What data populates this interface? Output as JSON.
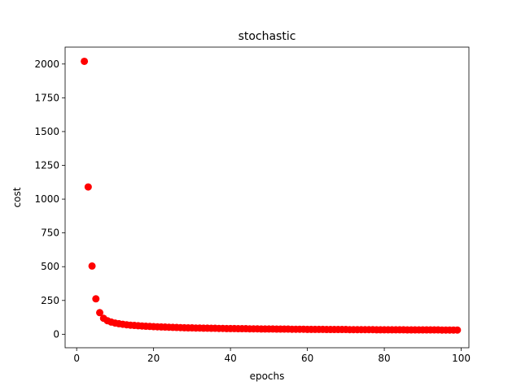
{
  "chart_data": {
    "type": "scatter",
    "title": "stochastic",
    "xlabel": "epochs",
    "ylabel": "cost",
    "xlim": [
      -3,
      102
    ],
    "ylim": [
      -100,
      2125
    ],
    "xticks": [
      0,
      20,
      40,
      60,
      80,
      100
    ],
    "yticks": [
      0,
      250,
      500,
      750,
      1000,
      1250,
      1500,
      1750,
      2000
    ],
    "grid": false,
    "color": "#ff0000",
    "series": [
      {
        "x": [
          2,
          3,
          4,
          5,
          6,
          7,
          8,
          9,
          10,
          11,
          12,
          13,
          14,
          15,
          16,
          17,
          18,
          19,
          20,
          21,
          22,
          23,
          24,
          25,
          26,
          27,
          28,
          29,
          30,
          31,
          32,
          33,
          34,
          35,
          36,
          37,
          38,
          39,
          40,
          41,
          42,
          43,
          44,
          45,
          46,
          47,
          48,
          49,
          50,
          51,
          52,
          53,
          54,
          55,
          56,
          57,
          58,
          59,
          60,
          61,
          62,
          63,
          64,
          65,
          66,
          67,
          68,
          69,
          70,
          71,
          72,
          73,
          74,
          75,
          76,
          77,
          78,
          79,
          80,
          81,
          82,
          83,
          84,
          85,
          86,
          87,
          88,
          89,
          90,
          91,
          92,
          93,
          94,
          95,
          96,
          97,
          98,
          99
        ],
        "y": [
          2020,
          1090,
          505,
          262,
          160,
          118,
          100,
          90,
          83,
          78,
          74,
          70,
          67,
          65,
          63,
          61,
          59,
          58,
          56,
          55,
          54,
          53,
          52,
          51,
          50,
          49,
          48,
          47,
          47,
          46,
          46,
          45,
          45,
          44,
          44,
          43,
          43,
          42,
          42,
          42,
          41,
          41,
          41,
          40,
          40,
          40,
          39,
          39,
          39,
          39,
          38,
          38,
          38,
          38,
          37,
          37,
          37,
          37,
          36,
          36,
          36,
          36,
          36,
          35,
          35,
          35,
          35,
          35,
          35,
          34,
          34,
          34,
          34,
          34,
          34,
          34,
          33,
          33,
          33,
          33,
          33,
          33,
          33,
          33,
          32,
          32,
          32,
          32,
          32,
          32,
          32,
          32,
          32,
          31,
          31,
          31,
          31,
          31
        ]
      }
    ]
  }
}
